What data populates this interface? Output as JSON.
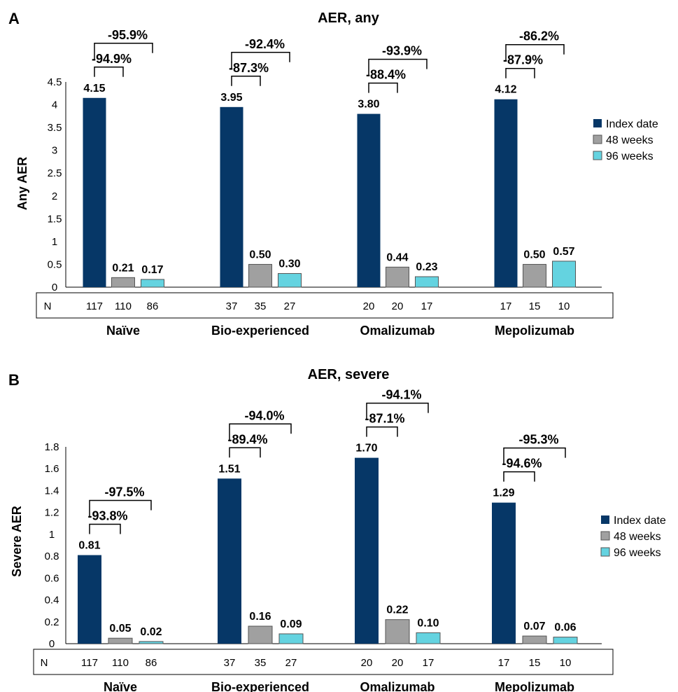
{
  "colors": {
    "index_date": "#063767",
    "48_weeks": "#a0a0a0",
    "96_weeks": "#64d3e0"
  },
  "chart_data": [
    {
      "panel": "A",
      "type": "bar",
      "title": "AER, any",
      "ylabel": "Any AER",
      "ylim": [
        0,
        4.5
      ],
      "yticks": [
        "0",
        "0.5",
        "1",
        "1.5",
        "2",
        "2.5",
        "3",
        "3.5",
        "4",
        "4.5"
      ],
      "categories": [
        "Naïve",
        "Bio-experienced",
        "Omalizumab",
        "Mepolizumab"
      ],
      "n_label": "N",
      "n": [
        [
          "117",
          "110",
          "86"
        ],
        [
          "37",
          "35",
          "27"
        ],
        [
          "20",
          "20",
          "17"
        ],
        [
          "17",
          "15",
          "10"
        ]
      ],
      "legend_position": "right",
      "series": [
        {
          "name": "Index date",
          "values": [
            4.15,
            3.95,
            3.8,
            4.12
          ],
          "labels": [
            "4.15",
            "3.95",
            "3.80",
            "4.12"
          ]
        },
        {
          "name": "48 weeks",
          "values": [
            0.21,
            0.5,
            0.44,
            0.5
          ],
          "labels": [
            "0.21",
            "0.50",
            "0.44",
            "0.50"
          ]
        },
        {
          "name": "96 weeks",
          "values": [
            0.17,
            0.3,
            0.23,
            0.57
          ],
          "labels": [
            "0.17",
            "0.30",
            "0.23",
            "0.57"
          ]
        }
      ],
      "changes_48": [
        "-94.9%",
        "-87.3%",
        "-88.4%",
        "-87.9%"
      ],
      "changes_96": [
        "-95.9%",
        "-92.4%",
        "-93.9%",
        "-86.2%"
      ]
    },
    {
      "panel": "B",
      "type": "bar",
      "title": "AER, severe",
      "ylabel": "Severe AER",
      "ylim": [
        0,
        1.8
      ],
      "yticks": [
        "0",
        "0.2",
        "0.4",
        "0.6",
        "0.8",
        "1",
        "1.2",
        "1.4",
        "1.6",
        "1.8"
      ],
      "categories": [
        "Naïve",
        "Bio-experienced",
        "Omalizumab",
        "Mepolizumab"
      ],
      "n_label": "N",
      "n": [
        [
          "117",
          "110",
          "86"
        ],
        [
          "37",
          "35",
          "27"
        ],
        [
          "20",
          "20",
          "17"
        ],
        [
          "17",
          "15",
          "10"
        ]
      ],
      "legend_position": "right",
      "series": [
        {
          "name": "Index date",
          "values": [
            0.81,
            1.51,
            1.7,
            1.29
          ],
          "labels": [
            "0.81",
            "1.51",
            "1.70",
            "1.29"
          ]
        },
        {
          "name": "48 weeks",
          "values": [
            0.05,
            0.16,
            0.22,
            0.07
          ],
          "labels": [
            "0.05",
            "0.16",
            "0.22",
            "0.07"
          ]
        },
        {
          "name": "96 weeks",
          "values": [
            0.02,
            0.09,
            0.1,
            0.06
          ],
          "labels": [
            "0.02",
            "0.09",
            "0.10",
            "0.06"
          ]
        }
      ],
      "changes_48": [
        "-93.8%",
        "-89.4%",
        "-87.1%",
        "-94.6%"
      ],
      "changes_96": [
        "-97.5%",
        "-94.0%",
        "-94.1%",
        "-95.3%"
      ]
    }
  ]
}
